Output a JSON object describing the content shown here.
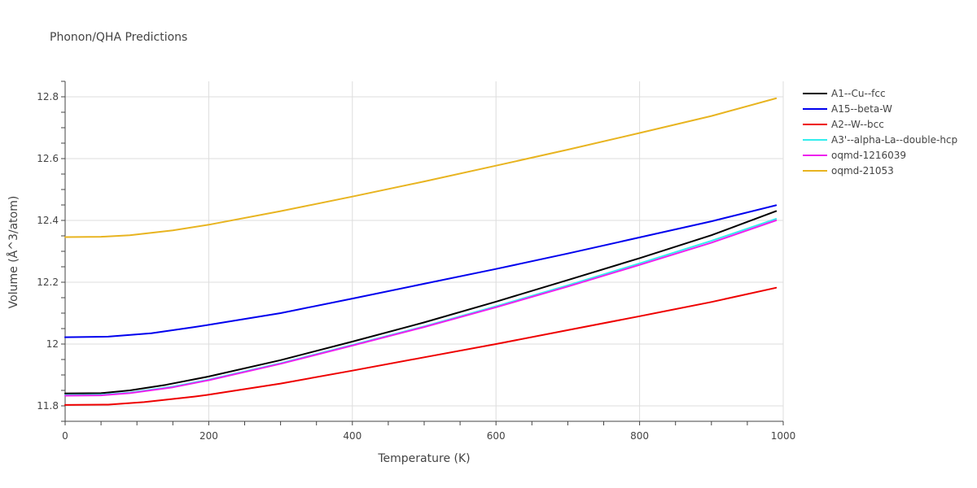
{
  "chart_data": {
    "type": "line",
    "title": "Phonon/QHA Predictions",
    "xlabel": "Temperature (K)",
    "ylabel": "Volume (Å^3/atom)",
    "xlim": [
      0,
      1000
    ],
    "ylim": [
      11.75,
      12.85
    ],
    "x_ticks": [
      0,
      200,
      400,
      600,
      800,
      1000
    ],
    "y_ticks": [
      11.8,
      12.0,
      12.2,
      12.4,
      12.6,
      12.8
    ],
    "x_tick_labels": [
      "0",
      "200",
      "400",
      "600",
      "800",
      "1000"
    ],
    "y_tick_labels": [
      "11.8",
      "12",
      "12.2",
      "12.4",
      "12.6",
      "12.8"
    ],
    "grid": true,
    "legend_position": "top-right",
    "series": [
      {
        "name": "A1--Cu--fcc",
        "color": "#000000",
        "points": [
          [
            0,
            11.84
          ],
          [
            50,
            11.841
          ],
          [
            90,
            11.85
          ],
          [
            140,
            11.868
          ],
          [
            200,
            11.895
          ],
          [
            300,
            11.948
          ],
          [
            400,
            12.008
          ],
          [
            500,
            12.07
          ],
          [
            600,
            12.137
          ],
          [
            700,
            12.207
          ],
          [
            800,
            12.278
          ],
          [
            900,
            12.352
          ],
          [
            990,
            12.43
          ]
        ]
      },
      {
        "name": "A15--beta-W",
        "color": "#0000ee",
        "points": [
          [
            0,
            12.022
          ],
          [
            60,
            12.024
          ],
          [
            120,
            12.035
          ],
          [
            180,
            12.055
          ],
          [
            200,
            12.062
          ],
          [
            300,
            12.1
          ],
          [
            400,
            12.147
          ],
          [
            500,
            12.195
          ],
          [
            600,
            12.243
          ],
          [
            700,
            12.293
          ],
          [
            800,
            12.345
          ],
          [
            900,
            12.397
          ],
          [
            990,
            12.449
          ]
        ]
      },
      {
        "name": "A2--W--bcc",
        "color": "#ee0000",
        "points": [
          [
            0,
            11.803
          ],
          [
            60,
            11.804
          ],
          [
            110,
            11.812
          ],
          [
            180,
            11.83
          ],
          [
            200,
            11.836
          ],
          [
            300,
            11.872
          ],
          [
            400,
            11.914
          ],
          [
            500,
            11.957
          ],
          [
            600,
            12.0
          ],
          [
            700,
            12.045
          ],
          [
            800,
            12.09
          ],
          [
            900,
            12.136
          ],
          [
            990,
            12.182
          ]
        ]
      },
      {
        "name": "A3'--alpha-La--double-hcp",
        "color": "#33eeee",
        "points": [
          [
            0,
            11.835
          ],
          [
            50,
            11.836
          ],
          [
            90,
            11.843
          ],
          [
            150,
            11.862
          ],
          [
            200,
            11.885
          ],
          [
            300,
            11.938
          ],
          [
            400,
            11.997
          ],
          [
            500,
            12.057
          ],
          [
            600,
            12.122
          ],
          [
            700,
            12.19
          ],
          [
            800,
            12.261
          ],
          [
            900,
            12.334
          ],
          [
            990,
            12.405
          ]
        ]
      },
      {
        "name": "oqmd-1216039",
        "color": "#ee22ee",
        "points": [
          [
            0,
            11.833
          ],
          [
            50,
            11.834
          ],
          [
            90,
            11.841
          ],
          [
            150,
            11.86
          ],
          [
            200,
            11.883
          ],
          [
            300,
            11.936
          ],
          [
            400,
            11.995
          ],
          [
            500,
            12.055
          ],
          [
            600,
            12.119
          ],
          [
            700,
            12.186
          ],
          [
            800,
            12.256
          ],
          [
            900,
            12.328
          ],
          [
            990,
            12.4
          ]
        ]
      },
      {
        "name": "oqmd-21053",
        "color": "#e8b420",
        "points": [
          [
            0,
            12.346
          ],
          [
            50,
            12.347
          ],
          [
            90,
            12.352
          ],
          [
            150,
            12.368
          ],
          [
            200,
            12.386
          ],
          [
            300,
            12.43
          ],
          [
            400,
            12.477
          ],
          [
            500,
            12.526
          ],
          [
            600,
            12.577
          ],
          [
            700,
            12.629
          ],
          [
            800,
            12.683
          ],
          [
            900,
            12.738
          ],
          [
            990,
            12.795
          ]
        ]
      }
    ]
  }
}
